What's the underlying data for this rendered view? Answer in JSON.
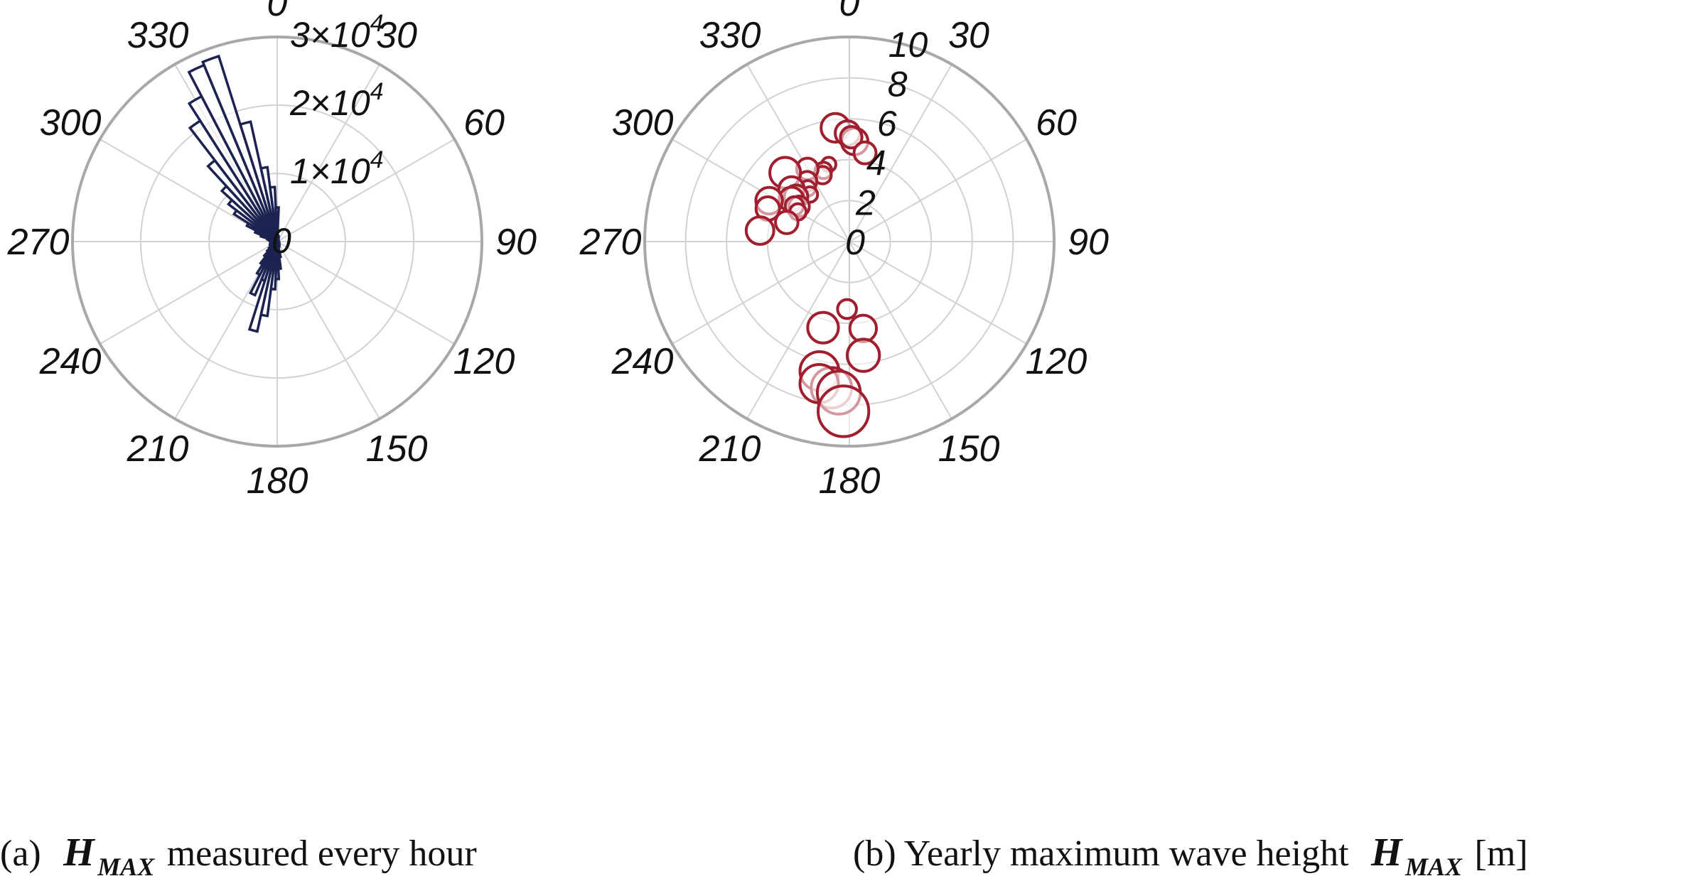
{
  "captions": {
    "a": {
      "prefix": "(a) ",
      "symbol": "H",
      "subscript": "MAX",
      "suffix": " measured every hour"
    },
    "b": {
      "prefix": "(b) Yearly maximum wave height ",
      "symbol": "H",
      "subscript": "MAX",
      "suffix": " [m]"
    }
  },
  "colors": {
    "bars": "#1c2350",
    "circles": "#a01e2d",
    "grid": "#d2d2d2",
    "outer_ring": "#a8a8a8"
  },
  "chart_data": [
    {
      "type": "polar-bar",
      "theta_zero": "top",
      "theta_direction": "clockwise",
      "angle_ticks": [
        "0",
        "30",
        "60",
        "90",
        "120",
        "150",
        "180",
        "210",
        "240",
        "270",
        "300",
        "330"
      ],
      "r_ticks": [
        {
          "value": 0,
          "mant": "",
          "exp": "",
          "label": "0"
        },
        {
          "value": 10000,
          "mant": "1×10",
          "exp": "4",
          "label": ""
        },
        {
          "value": 20000,
          "mant": "2×10",
          "exp": "4",
          "label": ""
        },
        {
          "value": 30000,
          "mant": "3×10",
          "exp": "4",
          "label": ""
        }
      ],
      "rlim": [
        0,
        30000
      ],
      "bin_width_deg": 5,
      "bins": [
        {
          "angle": 5,
          "value": 900
        },
        {
          "angle": 10,
          "value": 800
        },
        {
          "angle": 15,
          "value": 700
        },
        {
          "angle": 20,
          "value": 500
        },
        {
          "angle": 30,
          "value": 300
        },
        {
          "angle": 45,
          "value": 250
        },
        {
          "angle": 60,
          "value": 200
        },
        {
          "angle": 75,
          "value": 200
        },
        {
          "angle": 90,
          "value": 200
        },
        {
          "angle": 105,
          "value": 250
        },
        {
          "angle": 120,
          "value": 300
        },
        {
          "angle": 135,
          "value": 400
        },
        {
          "angle": 150,
          "value": 600
        },
        {
          "angle": 160,
          "value": 800
        },
        {
          "angle": 170,
          "value": 2300
        },
        {
          "angle": 175,
          "value": 4000
        },
        {
          "angle": 180,
          "value": 5500
        },
        {
          "angle": 185,
          "value": 7000
        },
        {
          "angle": 190,
          "value": 11000
        },
        {
          "angle": 195,
          "value": 13500
        },
        {
          "angle": 200,
          "value": 6000
        },
        {
          "angle": 205,
          "value": 8500
        },
        {
          "angle": 210,
          "value": 5500
        },
        {
          "angle": 215,
          "value": 4000
        },
        {
          "angle": 220,
          "value": 2800
        },
        {
          "angle": 225,
          "value": 2000
        },
        {
          "angle": 230,
          "value": 1500
        },
        {
          "angle": 240,
          "value": 1200
        },
        {
          "angle": 250,
          "value": 1100
        },
        {
          "angle": 260,
          "value": 1000
        },
        {
          "angle": 270,
          "value": 1000
        },
        {
          "angle": 280,
          "value": 1200
        },
        {
          "angle": 285,
          "value": 1500
        },
        {
          "angle": 290,
          "value": 2500
        },
        {
          "angle": 295,
          "value": 3500
        },
        {
          "angle": 300,
          "value": 5000
        },
        {
          "angle": 305,
          "value": 7500
        },
        {
          "angle": 310,
          "value": 9000
        },
        {
          "angle": 315,
          "value": 11000
        },
        {
          "angle": 320,
          "value": 15000
        },
        {
          "angle": 325,
          "value": 21000
        },
        {
          "angle": 330,
          "value": 24000
        },
        {
          "angle": 335,
          "value": 28000
        },
        {
          "angle": 340,
          "value": 28500
        },
        {
          "angle": 345,
          "value": 18000
        },
        {
          "angle": 350,
          "value": 11000
        },
        {
          "angle": 355,
          "value": 8000
        },
        {
          "angle": 0,
          "value": 5000
        }
      ]
    },
    {
      "type": "polar-scatter",
      "theta_zero": "top",
      "theta_direction": "clockwise",
      "angle_ticks": [
        "0",
        "30",
        "60",
        "90",
        "120",
        "150",
        "180",
        "210",
        "240",
        "270",
        "300",
        "330"
      ],
      "r_ticks": [
        "0",
        "2",
        "4",
        "6",
        "8",
        "10"
      ],
      "rlim": [
        0,
        10
      ],
      "marker": "open circle, size proportional to wave height",
      "points": [
        {
          "theta": 353,
          "r": 5.6
        },
        {
          "theta": 359,
          "r": 5.3
        },
        {
          "theta": 3,
          "r": 4.9
        },
        {
          "theta": 1,
          "r": 5.1
        },
        {
          "theta": 10,
          "r": 4.4
        },
        {
          "theta": 345,
          "r": 3.9
        },
        {
          "theta": 340,
          "r": 3.7
        },
        {
          "theta": 338,
          "r": 3.5
        },
        {
          "theta": 330,
          "r": 4.1
        },
        {
          "theta": 325,
          "r": 3.6
        },
        {
          "theta": 322,
          "r": 3.3
        },
        {
          "theta": 320,
          "r": 3.0
        },
        {
          "theta": 317,
          "r": 4.6
        },
        {
          "theta": 312,
          "r": 3.8
        },
        {
          "theta": 310,
          "r": 3.4
        },
        {
          "theta": 306,
          "r": 3.5
        },
        {
          "theta": 305,
          "r": 3.0
        },
        {
          "theta": 303,
          "r": 3.2
        },
        {
          "theta": 300,
          "r": 2.9
        },
        {
          "theta": 297,
          "r": 4.4
        },
        {
          "theta": 292,
          "r": 4.3
        },
        {
          "theta": 287,
          "r": 3.2
        },
        {
          "theta": 277,
          "r": 4.4
        },
        {
          "theta": 182,
          "r": 3.3
        },
        {
          "theta": 197,
          "r": 4.4
        },
        {
          "theta": 171,
          "r": 4.3
        },
        {
          "theta": 173,
          "r": 5.6
        },
        {
          "theta": 193,
          "r": 6.5
        },
        {
          "theta": 187,
          "r": 7.2
        },
        {
          "theta": 192,
          "r": 7.1
        },
        {
          "theta": 184,
          "r": 7.4
        },
        {
          "theta": 182,
          "r": 8.3
        }
      ],
      "circle_sizes": [
        5.6,
        4.8,
        5.2,
        4.2,
        4.3,
        2.8,
        3.2,
        3.4,
        4.2,
        3.8,
        3.0,
        3.0,
        6.0,
        5.0,
        4.6,
        4.8,
        4.0,
        3.6,
        3.2,
        5.2,
        4.6,
        4.4,
        5.4,
        3.7,
        6.0,
        5.2,
        6.3,
        7.6,
        7.9,
        7.5,
        8.4,
        9.9
      ]
    }
  ]
}
